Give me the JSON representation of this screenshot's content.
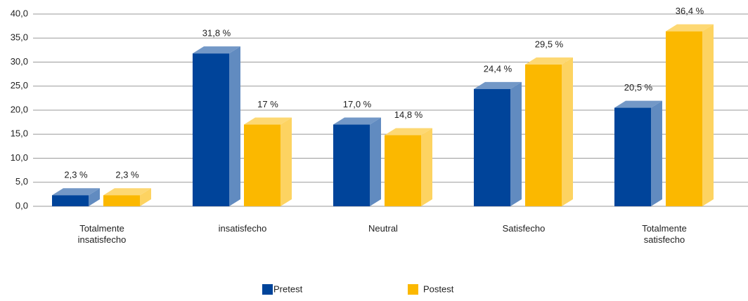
{
  "chart_data": {
    "type": "bar3d",
    "categories": [
      "Totalmente insatisfecho",
      "insatisfecho",
      "Neutral",
      "Satisfecho",
      "Totalmente satisfecho"
    ],
    "series": [
      {
        "name": "Pretest",
        "color": "#00449a",
        "values": [
          2.3,
          31.8,
          17.0,
          24.4,
          20.5
        ],
        "value_labels": [
          "2,3 %",
          "31,8 %",
          "17,0 %",
          "24,4 %",
          "20,5 %"
        ]
      },
      {
        "name": "Postest",
        "color": "#fbb800",
        "values": [
          2.3,
          17,
          14.8,
          29.5,
          36.4
        ],
        "value_labels": [
          "2,3 %",
          "17 %",
          "14,8 %",
          "29,5 %",
          "36,4 %"
        ]
      }
    ],
    "ylim": [
      0,
      40
    ],
    "yticks": [
      {
        "value": 0,
        "label": "0,0"
      },
      {
        "value": 5,
        "label": "5,0"
      },
      {
        "value": 10,
        "label": "10,0"
      },
      {
        "value": 15,
        "label": "15,0"
      },
      {
        "value": 20,
        "label": "20,0"
      },
      {
        "value": 25,
        "label": "25,0"
      },
      {
        "value": 30,
        "label": "30,0"
      },
      {
        "value": 35,
        "label": "35,0"
      },
      {
        "value": 40,
        "label": "40,0"
      }
    ],
    "grid": true,
    "legend": "bottom"
  }
}
